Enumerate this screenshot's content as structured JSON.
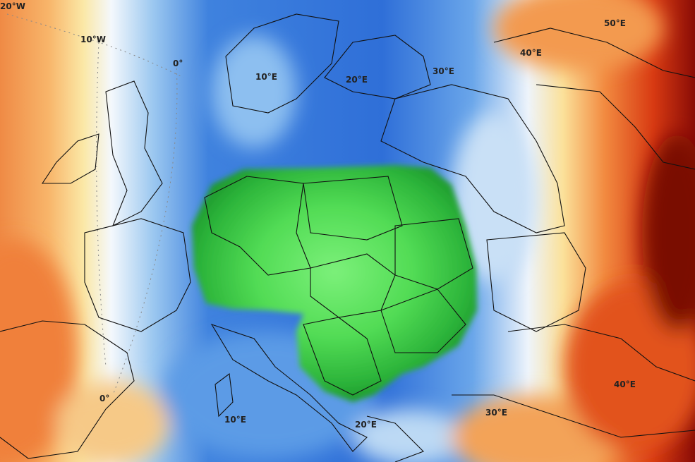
{
  "map": {
    "colors": {
      "far_warm": "#c81e0a",
      "warm": "#f08a3c",
      "mild": "#fbe39a",
      "neutral": "#f2f6fb",
      "cool": "#9cc8f0",
      "cold": "#2f6fd8",
      "anomaly_green": "#2fb83a",
      "anomaly_green_light": "#6ee86a"
    },
    "labels": {
      "lon_20w": "20°W",
      "lon_10w": "10°W",
      "lon_0_top": "0°",
      "lon_10e_top": "10°E",
      "lon_20e_top": "20°E",
      "lon_30e_top": "30°E",
      "lon_40e_top": "40°E",
      "lon_50e_top": "50°E",
      "lon_0_bottom": "0°",
      "lon_10e_bottom": "10°E",
      "lon_20e_bottom": "20°E",
      "lon_30e_bottom": "30°E",
      "lon_40e_bottom": "40°E"
    }
  }
}
